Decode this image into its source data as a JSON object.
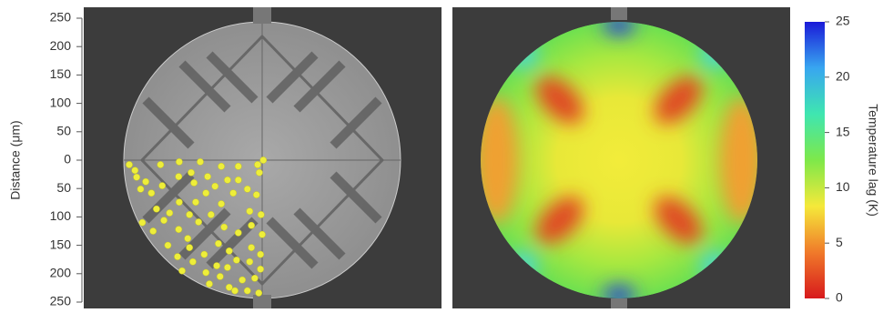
{
  "chart_data": {
    "type": "scatter",
    "ylabel": "Distance (μm)",
    "ylim": [
      -250,
      250
    ],
    "yticks": [
      250,
      200,
      150,
      100,
      50,
      0,
      {
        "value": -50,
        "label": "50"
      },
      {
        "value": -100,
        "label": "100"
      },
      {
        "value": -150,
        "label": "150"
      },
      {
        "value": -200,
        "label": "200"
      },
      {
        "value": -250,
        "label": "250"
      }
    ],
    "color": "#eeee3a",
    "x": [
      -234,
      -224,
      -221,
      -205,
      -179,
      -146,
      -109,
      -72,
      -42,
      -8,
      2,
      -5,
      -214,
      -195,
      -176,
      -147,
      -125,
      -120,
      -96,
      -83,
      -61,
      -42,
      -26,
      -10,
      -186,
      -163,
      -146,
      -128,
      -117,
      -99,
      -72,
      -51,
      -22,
      -2,
      -211,
      -192,
      -173,
      -147,
      -131,
      -112,
      -90,
      -67,
      -42,
      -19,
      0,
      -166,
      -149,
      -128,
      -102,
      -77,
      -58,
      -19,
      -3,
      -141,
      -122,
      -99,
      -80,
      -61,
      -45,
      -22,
      -3,
      -93,
      -74,
      -58,
      -35,
      -13,
      -48,
      -26,
      -6
    ],
    "y": [
      -8,
      -18,
      -30,
      -38,
      -8,
      -3,
      -3,
      -11,
      -11,
      -8,
      0,
      -22,
      -51,
      -58,
      -45,
      -29,
      -22,
      -40,
      -29,
      -46,
      -35,
      -35,
      -51,
      -61,
      -86,
      -93,
      -74,
      -96,
      -74,
      -58,
      -77,
      -58,
      -90,
      -96,
      -110,
      -125,
      -106,
      -122,
      -138,
      -109,
      -96,
      -118,
      -128,
      -115,
      -131,
      -150,
      -170,
      -154,
      -166,
      -147,
      -160,
      -154,
      -166,
      -195,
      -179,
      -198,
      -186,
      -189,
      -176,
      -179,
      -192,
      -218,
      -205,
      -224,
      -211,
      -208,
      -230,
      -230,
      -234
    ],
    "colorbar": {
      "label": "Temperature lag (K)",
      "lim": [
        0,
        25
      ],
      "ticks": [
        0,
        5,
        10,
        15,
        20,
        25
      ],
      "colors": [
        "#d7191c",
        "#f07a2a",
        "#f5e93a",
        "#7ee84a",
        "#3fe6b0",
        "#38a6f0",
        "#1a1ad8"
      ]
    }
  }
}
